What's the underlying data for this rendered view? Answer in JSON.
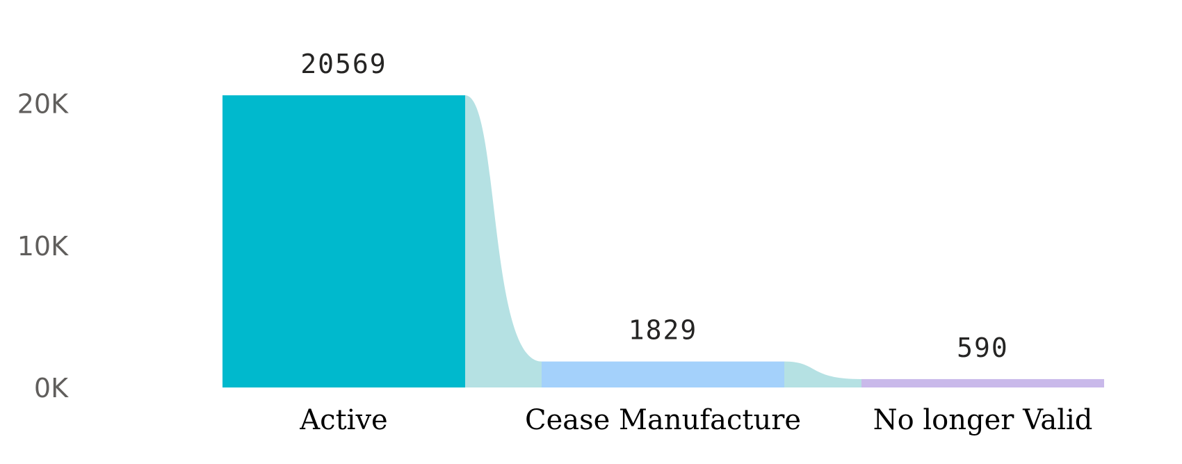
{
  "chart_data": {
    "type": "funnel",
    "categories": [
      "Active",
      "Cease Manufacture",
      "No longer Valid"
    ],
    "values": [
      20569,
      1829,
      590
    ],
    "data_labels": [
      "20569",
      "1829",
      "590"
    ],
    "y_ticks": [
      {
        "value": 0,
        "label": "0K"
      },
      {
        "value": 10000,
        "label": "10K"
      },
      {
        "value": 20000,
        "label": "20K"
      }
    ],
    "ylim": [
      0,
      20569
    ],
    "grid": false,
    "colors": {
      "bars": [
        "#00b9cd",
        "#a4d1fb",
        "#c9b9ea"
      ],
      "ribbon": "#b5e1e3"
    }
  }
}
